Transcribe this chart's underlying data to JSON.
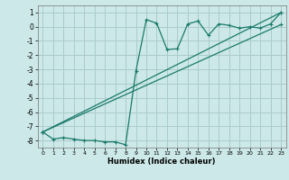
{
  "xlabel": "Humidex (Indice chaleur)",
  "background_color": "#cce8e8",
  "grid_color": "#aacccc",
  "line_color": "#1a7a6a",
  "x_min": -0.5,
  "x_max": 23.5,
  "y_min": -8.5,
  "y_max": 1.5,
  "yticks": [
    1,
    0,
    -1,
    -2,
    -3,
    -4,
    -5,
    -6,
    -7,
    -8
  ],
  "xticks": [
    0,
    1,
    2,
    3,
    4,
    5,
    6,
    7,
    8,
    9,
    10,
    11,
    12,
    13,
    14,
    15,
    16,
    17,
    18,
    19,
    20,
    21,
    22,
    23
  ],
  "series1_x": [
    0,
    1,
    2,
    3,
    4,
    5,
    6,
    7,
    8,
    9,
    10,
    11,
    12,
    13,
    14,
    15,
    16,
    17,
    18,
    19,
    20,
    21,
    22,
    23
  ],
  "series1_y": [
    -7.4,
    -7.9,
    -7.8,
    -7.9,
    -8.0,
    -8.0,
    -8.1,
    -8.1,
    -8.3,
    -3.1,
    0.5,
    0.25,
    -1.6,
    -1.55,
    0.2,
    0.4,
    -0.6,
    0.2,
    0.1,
    -0.1,
    0.0,
    -0.1,
    0.2,
    1.0
  ],
  "series2_x": [
    0,
    23
  ],
  "series2_y": [
    -7.4,
    0.15
  ],
  "series3_x": [
    0,
    23
  ],
  "series3_y": [
    -7.4,
    1.0
  ]
}
